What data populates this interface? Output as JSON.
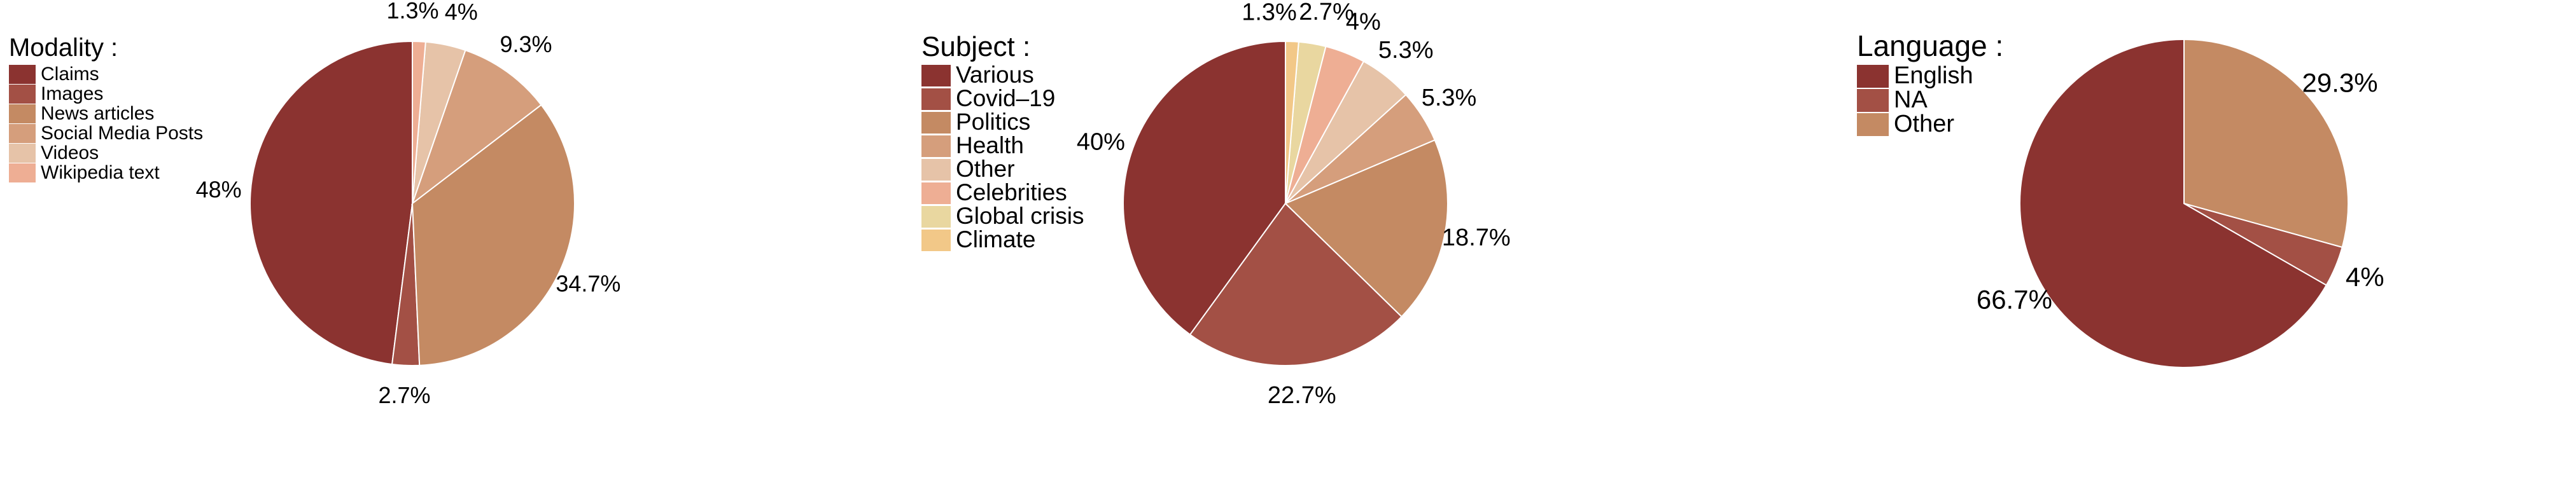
{
  "chart_data": [
    {
      "type": "pie",
      "legend_title": "Modality :",
      "legend_position": "top-left",
      "slices": [
        {
          "label": "Claims",
          "value": 48,
          "display": "48%",
          "color": "#8b3330"
        },
        {
          "label": "Images",
          "value": 2.7,
          "display": "2.7%",
          "color": "#a35045"
        },
        {
          "label": "News articles",
          "value": 34.7,
          "display": "34.7%",
          "color": "#c48a63"
        },
        {
          "label": "Social Media Posts",
          "value": 9.3,
          "display": "9.3%",
          "color": "#d59e7c"
        },
        {
          "label": "Videos",
          "value": 4,
          "display": "4%",
          "color": "#e6c3a8"
        },
        {
          "label": "Wikipedia text",
          "value": 1.3,
          "display": "1.3%",
          "color": "#eeae94"
        }
      ]
    },
    {
      "type": "pie",
      "legend_title": "Subject :",
      "legend_position": "top-left",
      "slices": [
        {
          "label": "Various",
          "value": 40,
          "display": "40%",
          "color": "#8b3330"
        },
        {
          "label": "Covid–19",
          "value": 22.7,
          "display": "22.7%",
          "color": "#a35045"
        },
        {
          "label": "Politics",
          "value": 18.7,
          "display": "18.7%",
          "color": "#c48a63"
        },
        {
          "label": "Health",
          "value": 5.3,
          "display": "5.3%",
          "color": "#d59e7c"
        },
        {
          "label": "Other",
          "value": 5.3,
          "display": "5.3%",
          "color": "#e6c3a8"
        },
        {
          "label": "Celebrities",
          "value": 4,
          "display": "4%",
          "color": "#eeae94"
        },
        {
          "label": "Global crisis",
          "value": 2.7,
          "display": "2.7%",
          "color": "#e9d7a0"
        },
        {
          "label": "Climate",
          "value": 1.3,
          "display": "1.3%",
          "color": "#f2c888"
        }
      ]
    },
    {
      "type": "pie",
      "legend_title": "Language :",
      "legend_position": "top-left",
      "slices": [
        {
          "label": "English",
          "value": 66.7,
          "display": "66.7%",
          "color": "#8b3330"
        },
        {
          "label": "NA",
          "value": 4,
          "display": "4%",
          "color": "#a35045"
        },
        {
          "label": "Other",
          "value": 29.3,
          "display": "29.3%",
          "color": "#c48a63"
        }
      ]
    }
  ]
}
